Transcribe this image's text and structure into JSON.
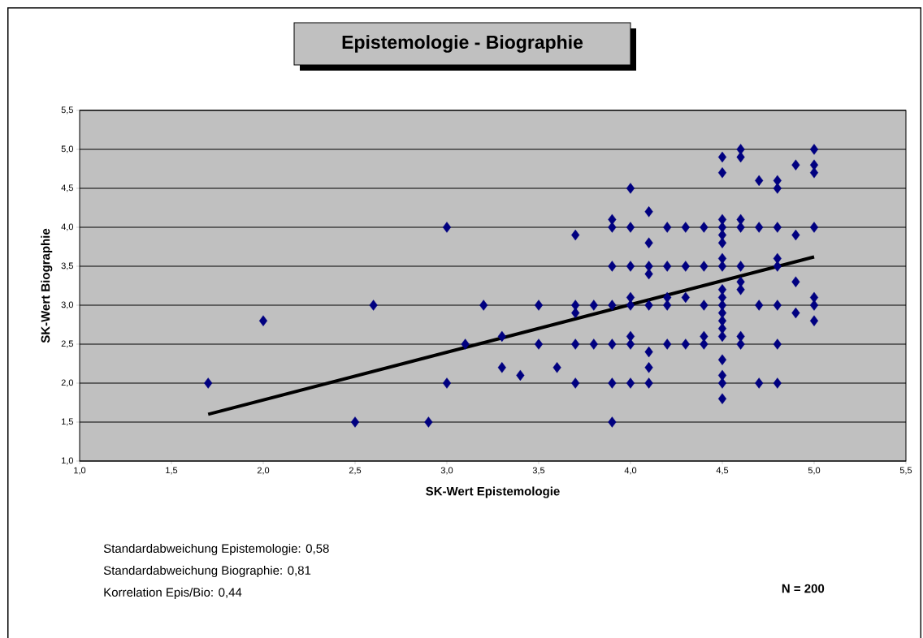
{
  "chart_data": {
    "type": "scatter",
    "title": "Epistemologie - Biographie",
    "xlabel": "SK-Wert Epistemologie",
    "ylabel": "SK-Wert Biographie",
    "annotations": [
      "Standardabweichung Epistemologie: 0,58",
      "Standardabweichung Biographie: 0,81",
      "Korrelation Epis/Bio: 0,44",
      "N = 200"
    ],
    "xlim": [
      1.0,
      5.5
    ],
    "ylim": [
      1.0,
      5.5
    ],
    "xticks": [
      {
        "value": 1.0,
        "label": "1,0"
      },
      {
        "value": 1.5,
        "label": "1,5"
      },
      {
        "value": 2.0,
        "label": "2,0"
      },
      {
        "value": 2.5,
        "label": "2,5"
      },
      {
        "value": 3.0,
        "label": "3,0"
      },
      {
        "value": 3.5,
        "label": "3,5"
      },
      {
        "value": 4.0,
        "label": "4,0"
      },
      {
        "value": 4.5,
        "label": "4,5"
      },
      {
        "value": 5.0,
        "label": "5,0"
      },
      {
        "value": 5.5,
        "label": "5,5"
      }
    ],
    "yticks": [
      {
        "value": 1.0,
        "label": "1,0"
      },
      {
        "value": 1.5,
        "label": "1,5"
      },
      {
        "value": 2.0,
        "label": "2,0"
      },
      {
        "value": 2.5,
        "label": "2,5"
      },
      {
        "value": 3.0,
        "label": "3,0"
      },
      {
        "value": 3.5,
        "label": "3,5"
      },
      {
        "value": 4.0,
        "label": "4,0"
      },
      {
        "value": 4.5,
        "label": "4,5"
      },
      {
        "value": 5.0,
        "label": "5,0"
      },
      {
        "value": 5.5,
        "label": "5,5"
      }
    ],
    "grid": "y",
    "marker": "diamond",
    "series": [
      {
        "type": "scatter",
        "color": "#000080",
        "x": [
          1.7,
          2.0,
          2.5,
          2.6,
          2.9,
          3.0,
          3.0,
          3.1,
          3.2,
          3.3,
          3.3,
          3.4,
          3.5,
          3.5,
          3.6,
          3.7,
          3.7,
          3.7,
          3.7,
          3.7,
          3.8,
          3.8,
          3.9,
          3.9,
          3.9,
          3.9,
          3.9,
          3.9,
          3.9,
          4.0,
          4.0,
          4.0,
          4.0,
          4.0,
          4.0,
          4.0,
          4.0,
          4.1,
          4.1,
          4.1,
          4.1,
          4.1,
          4.1,
          4.1,
          4.1,
          4.2,
          4.2,
          4.2,
          4.2,
          4.2,
          4.3,
          4.3,
          4.3,
          4.3,
          4.4,
          4.4,
          4.4,
          4.4,
          4.4,
          4.5,
          4.5,
          4.5,
          4.5,
          4.5,
          4.5,
          4.5,
          4.5,
          4.5,
          4.5,
          4.5,
          4.5,
          4.5,
          4.5,
          4.5,
          4.5,
          4.5,
          4.5,
          4.5,
          4.6,
          4.6,
          4.6,
          4.6,
          4.6,
          4.6,
          4.6,
          4.6,
          4.6,
          4.7,
          4.7,
          4.7,
          4.7,
          4.8,
          4.8,
          4.8,
          4.8,
          4.8,
          4.8,
          4.8,
          4.8,
          4.9,
          4.9,
          4.9,
          4.9,
          5.0,
          5.0,
          5.0,
          5.0,
          5.0,
          5.0,
          5.0
        ],
        "values": [
          2.0,
          2.8,
          1.5,
          3.0,
          1.5,
          4.0,
          2.0,
          2.5,
          3.0,
          2.6,
          2.2,
          2.1,
          3.0,
          2.5,
          2.2,
          3.9,
          3.0,
          2.9,
          2.5,
          2.0,
          3.0,
          2.5,
          4.1,
          4.0,
          3.5,
          3.0,
          2.5,
          2.0,
          1.5,
          4.5,
          4.0,
          3.5,
          3.1,
          3.0,
          2.6,
          2.5,
          2.0,
          4.2,
          3.8,
          3.5,
          3.4,
          3.0,
          2.4,
          2.2,
          2.0,
          4.0,
          3.5,
          3.1,
          3.0,
          2.5,
          4.0,
          3.5,
          3.1,
          2.5,
          4.0,
          3.5,
          3.0,
          2.6,
          2.5,
          4.9,
          4.7,
          4.1,
          4.0,
          3.9,
          3.8,
          3.6,
          3.5,
          3.2,
          3.1,
          3.0,
          2.9,
          2.8,
          2.7,
          2.6,
          2.3,
          2.1,
          2.0,
          1.8,
          5.0,
          4.9,
          4.1,
          4.0,
          3.5,
          3.3,
          3.2,
          2.6,
          2.5,
          4.6,
          4.0,
          3.0,
          2.0,
          4.6,
          4.5,
          4.0,
          3.6,
          3.5,
          3.0,
          2.5,
          2.0,
          4.8,
          3.9,
          3.3,
          2.9,
          5.0,
          4.8,
          4.7,
          4.0,
          3.1,
          3.0,
          2.8
        ]
      },
      {
        "type": "line",
        "color": "#000000",
        "marker": "none",
        "x": [
          1.7,
          5.0
        ],
        "values": [
          1.6,
          3.62
        ]
      }
    ]
  }
}
